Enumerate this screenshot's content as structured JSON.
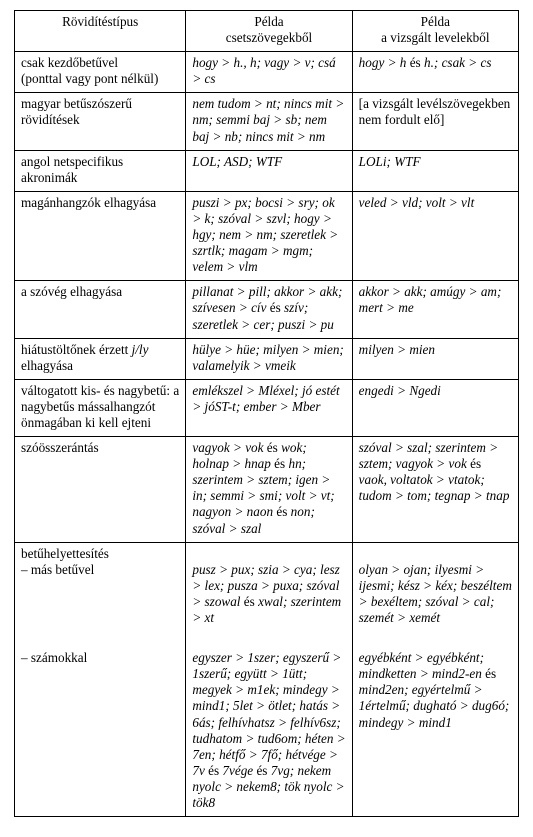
{
  "headers": {
    "col1": "Rövidítéstípus",
    "col2_line1": "Példa",
    "col2_line2": "csetszövegekből",
    "col3_line1": "Példa",
    "col3_line2": "a vizsgált levelekből"
  },
  "rows": [
    {
      "type_line1": "csak kezdőbetűvel",
      "type_line2": "(ponttal vagy pont nélkül)",
      "ex1": "hogy > h., h;  vagy > v;  csá > cs",
      "ex2_plain_pre": "hogy > h ",
      "ex2_mid": "és",
      "ex2_plain_post": " h.; csak > cs"
    },
    {
      "type": "magyar betűszószerű rövidítések",
      "ex1": "nem tudom > nt; nincs mit > nm; semmi baj > sb; nem baj > nb; nincs mit > nm",
      "ex2_bracket": "[a vizsgált levélszövegekben nem fordult elő]"
    },
    {
      "type": "angol netspecifikus akronimák",
      "ex1": "LOL; ASD; WTF",
      "ex2": "LOLi; WTF"
    },
    {
      "type": "magánhangzók elhagyása",
      "ex1": "puszi > px; bocsi > sry; ok > k; szóval > szvl; hogy > hgy; nem > nm; szeretlek > szrtlk; magam > mgm; velem > vlm",
      "ex2": "veled > vld; volt > vlt"
    },
    {
      "type": "a szóvég elhagyása",
      "ex1_a": "pillanat > pill; akkor > akk; szívesen > cív ",
      "ex1_mid": "és",
      "ex1_b": " szív; szeretlek > cer; puszi > pu",
      "ex2": "akkor > akk; amúgy > am; mert > me"
    },
    {
      "type_a": "hiátustöltőnek érzett ",
      "type_jly": "j/ly",
      "type_b": " elhagyása",
      "ex1": "hülye > hüe; milyen > mien; valamelyik > vmeik",
      "ex2": "milyen > mien"
    },
    {
      "type": "váltogatott kis- és nagybetű: a nagybetűs mássalhangzót önmagában ki kell ejteni",
      "ex1": "emlékszel > Mléxel; jó estét > jóST-t; ember > Mber",
      "ex2": "engedi > Ngedi"
    },
    {
      "type": "szóösszerántás",
      "ex1_a": "vagyok > vok ",
      "ex1_mid1": "és",
      "ex1_b": " wok; holnap > hnap ",
      "ex1_mid2": "és",
      "ex1_c": " hn; szerintem > sztem; igen > in; semmi > smi; volt > vt; nagyon > naon ",
      "ex1_mid3": "és",
      "ex1_d": " non; szóval > szal",
      "ex2_a": "szóval > szal; szerintem > sztem; vagyok > vok ",
      "ex2_mid": "és",
      "ex2_b": " vaok, voltatok > vtatok; tudom > tom; tegnap > tnap"
    }
  ],
  "compound": {
    "header": "betűhelyettesítés",
    "sub1_label": "– más betűvel",
    "sub1_ex1": "pusz > pux; szia > cya; lesz > lex; pusza > puxa; szóval > szowal ",
    "sub1_mid": "és",
    "sub1_ex1b": " xwal; szerintem > xt",
    "sub1_ex2": "olyan > ojan; ilyesmi > ijesmi; kész > kéx; beszéltem > bexéltem; szóval > cal; szemét > xemét",
    "sub2_label": "– számokkal",
    "sub2_ex1_a": "egyszer > 1szer; egyszerű > 1szerű; együtt > 1ütt; megyek > m1ek; mindegy > mind1; 5let > ötlet; hatás > 6ás; felhívhatsz > felhív6sz; tudhatom > tud6om; héten > 7en; hétfő > 7fő; hétvége > 7v ",
    "sub2_mid1": "és",
    "sub2_ex1_b": " 7vége ",
    "sub2_mid2": "és",
    "sub2_ex1_c": " 7vg; nekem nyolc > nekem8;  tök nyolc > tök8",
    "sub2_ex2_a": "egyébként > egyébként; mindketten > mind2-en ",
    "sub2_mid3": "és",
    "sub2_ex2_b": " mind2en; egyértelmű > 1értelmű; dugható > dug6ó; mindegy > mind1"
  }
}
